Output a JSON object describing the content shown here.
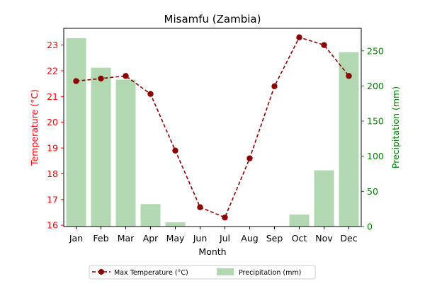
{
  "chart_data": {
    "type": "bar+line",
    "title": "Misamfu (Zambia)",
    "xlabel": "Month",
    "ylabel_left": "Temperature (°C)",
    "ylabel_right": "Precipitation (mm)",
    "categories": [
      "Jan",
      "Feb",
      "Mar",
      "Apr",
      "May",
      "Jun",
      "Jul",
      "Aug",
      "Sep",
      "Oct",
      "Nov",
      "Dec"
    ],
    "ylim_left": [
      15.95,
      23.65
    ],
    "yticks_left": [
      16,
      17,
      18,
      19,
      20,
      21,
      22,
      23
    ],
    "ylim_right": [
      0,
      282
    ],
    "yticks_right": [
      0,
      50,
      100,
      150,
      200,
      250
    ],
    "grid": false,
    "legend_position": "bottom-center",
    "series": [
      {
        "name": "Max Temperature (°C)",
        "type": "line",
        "axis": "left",
        "color": "#8b0000",
        "values": [
          21.6,
          21.7,
          21.8,
          21.1,
          18.9,
          16.7,
          16.3,
          18.6,
          21.4,
          23.3,
          23.0,
          21.8
        ]
      },
      {
        "name": "Precipitation (mm)",
        "type": "bar",
        "axis": "right",
        "color": "#b2d8b2",
        "values": [
          268,
          226,
          209,
          32,
          6,
          0,
          0,
          0,
          0,
          17,
          80,
          248
        ]
      }
    ],
    "colors": {
      "left_axis": "#ff0000",
      "right_axis": "#008000",
      "line": "#8b0000",
      "bar": "#b2d8b2"
    }
  }
}
